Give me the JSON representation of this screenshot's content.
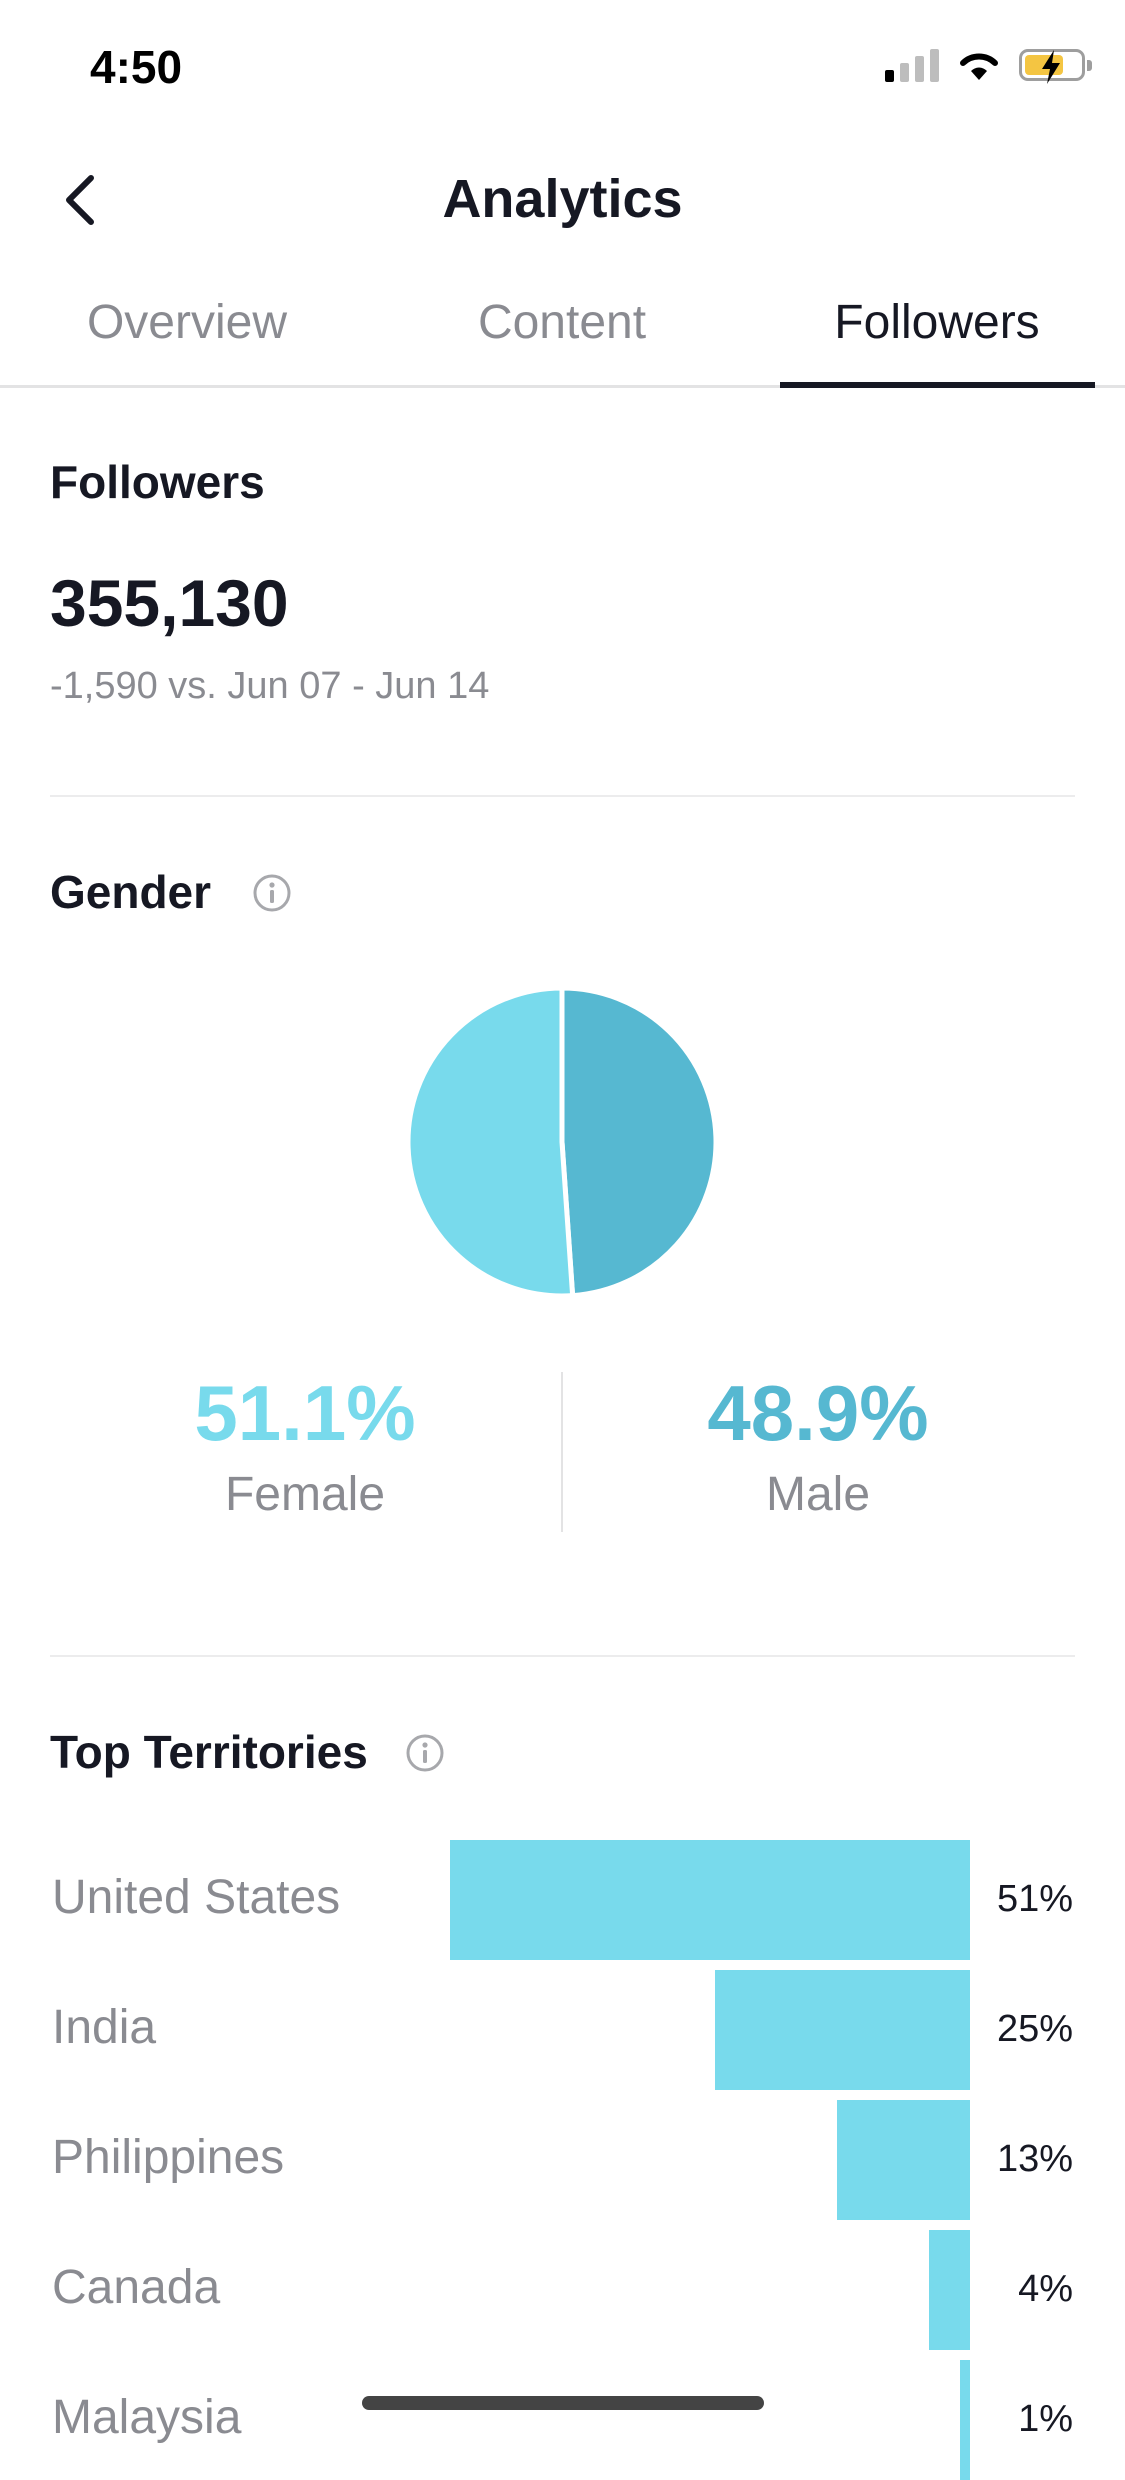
{
  "status_bar": {
    "time": "4:50",
    "signal_bars": 4,
    "signal_bars_on": 1
  },
  "header": {
    "title": "Analytics",
    "back_icon": "chevron-left-icon"
  },
  "tabs": [
    {
      "label": "Overview",
      "active": false
    },
    {
      "label": "Content",
      "active": false
    },
    {
      "label": "Followers",
      "active": true
    }
  ],
  "followers": {
    "title": "Followers",
    "count": "355,130",
    "change": "-1,590 vs. Jun 07 - Jun 14"
  },
  "gender": {
    "title": "Gender",
    "info_icon": "info-icon",
    "female": {
      "pct": "51.1%",
      "label": "Female",
      "value": 51.1,
      "color": "#78daec"
    },
    "male": {
      "pct": "48.9%",
      "label": "Male",
      "value": 48.9,
      "color": "#56b8d1"
    }
  },
  "territories": {
    "title": "Top Territories",
    "info_icon": "info-icon",
    "bar_color": "#78daec",
    "items": [
      {
        "name": "United States",
        "pct": "51%",
        "value": 51
      },
      {
        "name": "India",
        "pct": "25%",
        "value": 25
      },
      {
        "name": "Philippines",
        "pct": "13%",
        "value": 13
      },
      {
        "name": "Canada",
        "pct": "4%",
        "value": 4
      },
      {
        "name": "Malaysia",
        "pct": "1%",
        "value": 1
      }
    ]
  }
}
